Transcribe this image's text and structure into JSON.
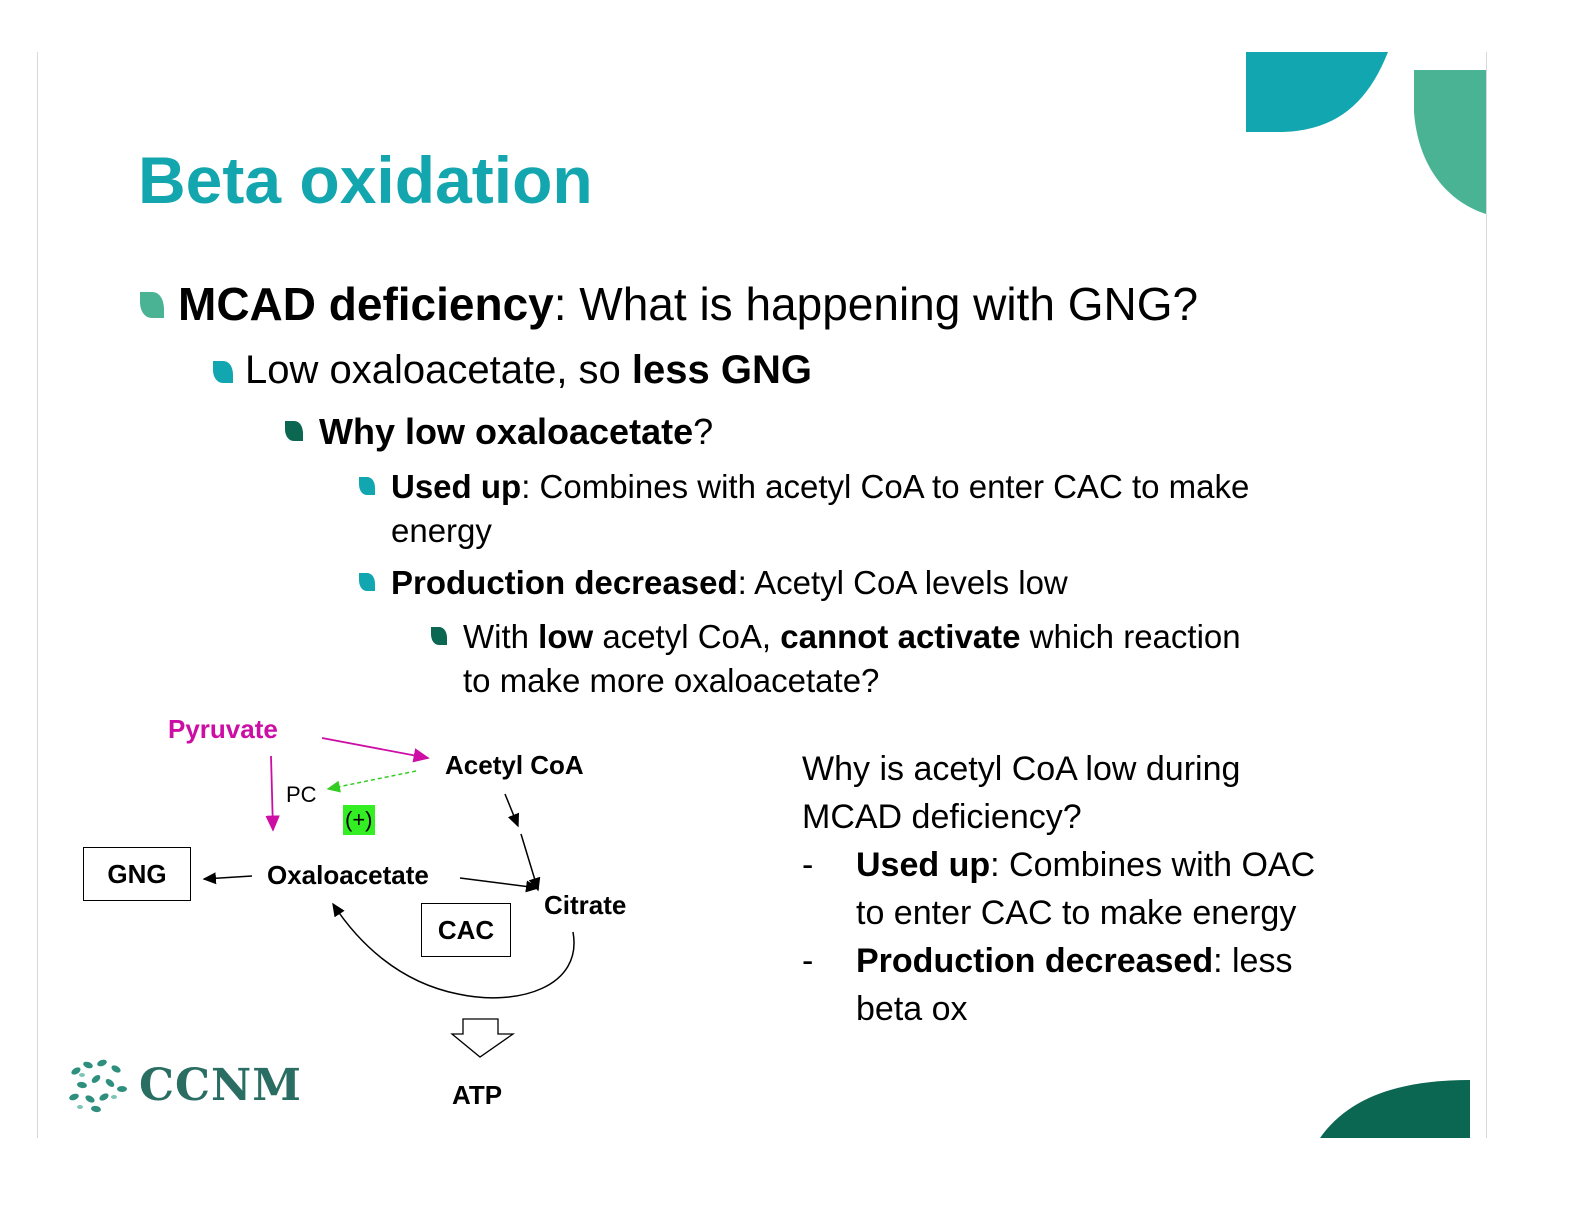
{
  "slide": {
    "title": "Beta oxidation",
    "bullet1": {
      "bold": "MCAD deficiency",
      "rest": ": What is happening with GNG?"
    },
    "bullet2": {
      "plain": "Low oxaloacetate, so ",
      "bold": "less GNG"
    },
    "bullet3": {
      "bold": "Why low oxaloacetate",
      "rest": "?"
    },
    "bullet4": {
      "bold": "Used up",
      "rest": ": Combines with acetyl CoA to enter CAC to make",
      "cont": "energy"
    },
    "bullet5": {
      "bold": "Production decreased",
      "rest": ":  Acetyl CoA levels low"
    },
    "bullet6": {
      "p1": "With ",
      "b1": "low",
      "p2": " acetyl CoA, ",
      "b2": "cannot activate",
      "p3": " which reaction",
      "cont": "to make more oxaloacetate?"
    }
  },
  "diagram": {
    "pyruvate": "Pyruvate",
    "acetyl_coa": "Acetyl CoA",
    "pc": "PC",
    "activator": "(+)",
    "gng": "GNG",
    "oxaloacetate": "Oxaloacetate",
    "citrate": "Citrate",
    "cac": "CAC",
    "atp": "ATP"
  },
  "right_text": {
    "question_line1": "Why is acetyl CoA low during",
    "question_line2": "MCAD deficiency?",
    "dash": "-",
    "item1_bold": "Used up",
    "item1_rest": ": Combines with OAC",
    "item1_cont": "to enter CAC to make energy",
    "item2_bold": "Production decreased",
    "item2_rest": ": less",
    "item2_cont": "beta ox"
  },
  "logo": {
    "text": "CCNM"
  },
  "colors": {
    "title": "#13a6ae",
    "teal": "#12a7b0",
    "green": "#4ab393",
    "dark_green": "#0b6652",
    "magenta": "#cc0ea4",
    "activator_bg": "#33ee22"
  }
}
